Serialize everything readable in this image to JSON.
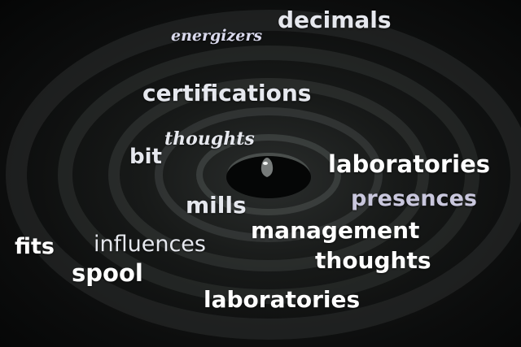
{
  "colors": {
    "white": "#ffffff",
    "light": "#e6e8ee",
    "lavender": "#d9d9ec",
    "pale_violet": "#c9c7dd",
    "water_dark": "#0c0d0d"
  },
  "words": [
    {
      "id": "decimals",
      "text": "decimals",
      "style": "sans",
      "color": "#e6e8ee"
    },
    {
      "id": "energizers",
      "text": "energizers",
      "style": "script",
      "color": "#d9d9ec"
    },
    {
      "id": "certifications",
      "text": "certifications",
      "style": "sans",
      "color": "#e6e8ee"
    },
    {
      "id": "thoughts-script",
      "text": "thoughts",
      "style": "script",
      "color": "#e6e8ee"
    },
    {
      "id": "bit",
      "text": "bit",
      "style": "sans",
      "color": "#e6e8ee"
    },
    {
      "id": "laboratories-right",
      "text": "laboratories",
      "style": "sans",
      "color": "#ffffff"
    },
    {
      "id": "presences",
      "text": "presences",
      "style": "sans",
      "color": "#c9c7dd"
    },
    {
      "id": "mills",
      "text": "mills",
      "style": "sans",
      "color": "#e6e8ee"
    },
    {
      "id": "management",
      "text": "management",
      "style": "sans",
      "color": "#ffffff"
    },
    {
      "id": "fits",
      "text": "fits",
      "style": "sans",
      "color": "#ffffff"
    },
    {
      "id": "influences",
      "text": "influences",
      "style": "sans",
      "color": "#e6e8ee"
    },
    {
      "id": "thoughts",
      "text": "thoughts",
      "style": "sans",
      "color": "#ffffff"
    },
    {
      "id": "spool",
      "text": "spool",
      "style": "sans",
      "color": "#ffffff"
    },
    {
      "id": "laboratories-bottom",
      "text": "laboratories",
      "style": "sans",
      "color": "#ffffff"
    }
  ]
}
